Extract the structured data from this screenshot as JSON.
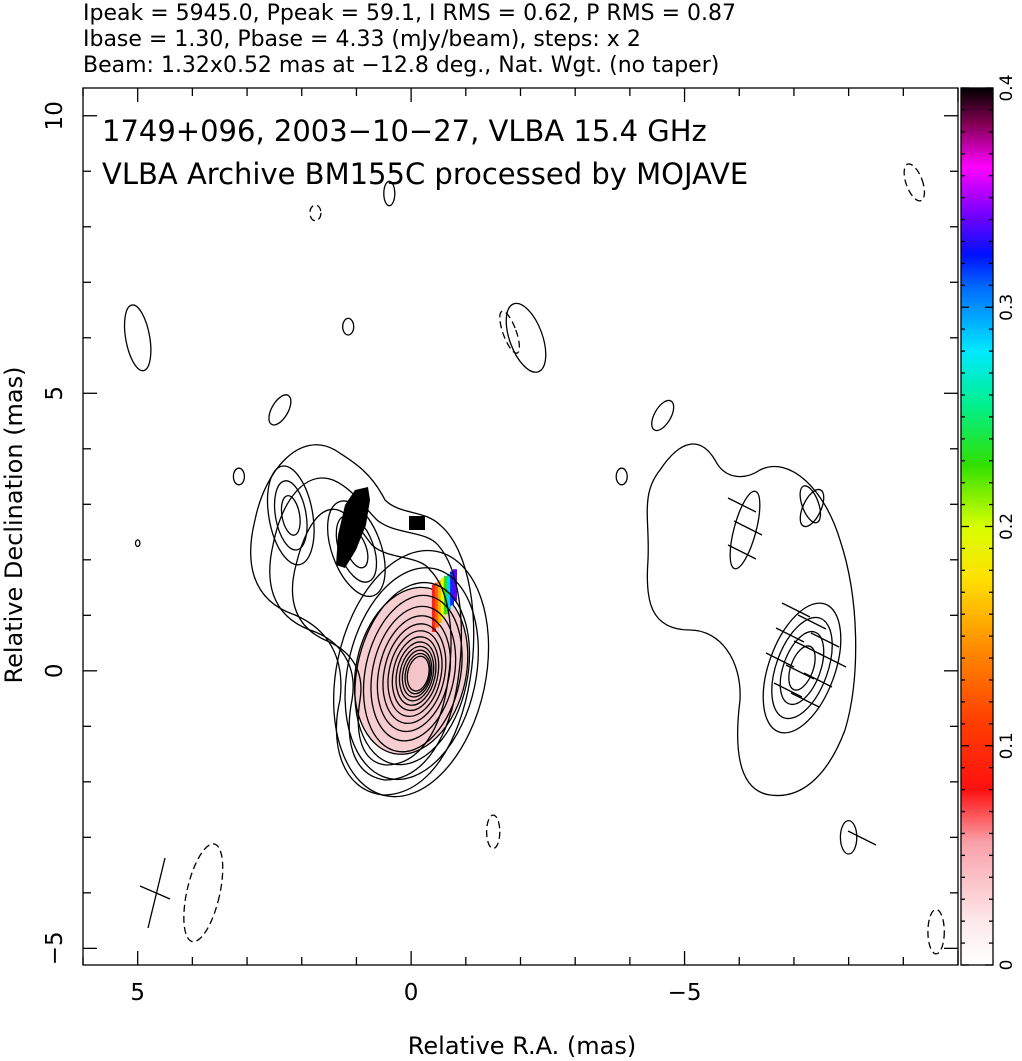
{
  "header": {
    "line1": "Ipeak = 5945.0, Ppeak = 59.1, I RMS = 0.62, P RMS = 0.87",
    "line2": "Ibase = 1.30, Pbase = 4.33 (mJy/beam), steps: x 2",
    "line3": "Beam: 1.32x0.52 mas at −12.8 deg., Nat. Wgt. (no taper)"
  },
  "chart_data": {
    "type": "contour",
    "title": "1749+096, 2003−10−27, VLBA 15.4 GHz",
    "subtitle": "VLBA Archive BM155C processed by MOJAVE",
    "xlabel": "Relative R.A. (mas)",
    "ylabel": "Relative Declination (mas)",
    "xlim": [
      6.0,
      -10.0
    ],
    "ylim": [
      -5.3,
      10.5
    ],
    "x_ticks": [
      {
        "value": 5,
        "label": "5"
      },
      {
        "value": 0,
        "label": "0"
      },
      {
        "value": -5,
        "label": "−5"
      }
    ],
    "y_ticks": [
      {
        "value": 10,
        "label": "10"
      },
      {
        "value": 5,
        "label": "5"
      },
      {
        "value": 0,
        "label": "0"
      },
      {
        "value": -5,
        "label": "−5"
      }
    ],
    "colorbar": {
      "range": [
        0,
        0.4
      ],
      "ticks": [
        {
          "value": 0,
          "label": "0"
        },
        {
          "value": 0.1,
          "label": "0.1"
        },
        {
          "value": 0.2,
          "label": "0.2"
        },
        {
          "value": 0.3,
          "label": "0.3"
        },
        {
          "value": 0.4,
          "label": "0.4"
        }
      ]
    },
    "left_panel": {
      "core": {
        "x": 0,
        "y": 0,
        "sigma_major": 1.45,
        "sigma_minor": 0.65,
        "pa_deg": -12
      },
      "jet": [
        {
          "x": 1.0,
          "y": 2.2,
          "sigma_major": 0.9,
          "sigma_minor": 0.45,
          "pa_deg": 20
        },
        {
          "x": 2.2,
          "y": 2.8,
          "sigma_major": 0.9,
          "sigma_minor": 0.4,
          "pa_deg": 10
        }
      ],
      "islands": [
        {
          "x": 5.0,
          "y": 6.0,
          "a": 0.6,
          "b": 0.22,
          "pa_deg": 10,
          "dashed": false
        },
        {
          "x": 2.4,
          "y": 4.7,
          "a": 0.3,
          "b": 0.15,
          "pa_deg": -30,
          "dashed": false
        },
        {
          "x": 3.15,
          "y": 3.5,
          "a": 0.15,
          "b": 0.1,
          "pa_deg": 0,
          "dashed": false
        },
        {
          "x": 1.15,
          "y": 6.2,
          "a": 0.15,
          "b": 0.1,
          "pa_deg": 0,
          "dashed": false
        },
        {
          "x": 1.75,
          "y": 8.25,
          "a": 0.14,
          "b": 0.1,
          "pa_deg": 0,
          "dashed": true
        },
        {
          "x": 5.0,
          "y": 2.3,
          "a": 0.06,
          "b": 0.04,
          "pa_deg": 0,
          "dashed": false
        },
        {
          "x": 0.4,
          "y": 8.6,
          "a": 0.22,
          "b": 0.1,
          "pa_deg": 0,
          "dashed": false
        },
        {
          "x": -2.1,
          "y": 6.0,
          "a": 0.65,
          "b": 0.3,
          "pa_deg": 20,
          "dashed": false
        },
        {
          "x": -1.8,
          "y": 6.1,
          "a": 0.4,
          "b": 0.12,
          "pa_deg": 20,
          "dashed": true
        },
        {
          "x": -1.5,
          "y": -2.9,
          "a": 0.3,
          "b": 0.12,
          "pa_deg": 0,
          "dashed": true
        }
      ],
      "beam": {
        "x": 3.8,
        "y": -4.0,
        "a": 0.9,
        "b": 0.3,
        "pa_deg": -12.8,
        "dashed": true
      },
      "polarization_blocks": [
        {
          "x": 1.0,
          "y": 2.6
        },
        {
          "x": -0.15,
          "y": 2.7
        }
      ]
    },
    "right_panel": {
      "offset_x": -7.0,
      "description_free": true,
      "islands": [
        {
          "x": -4.6,
          "y": 4.6,
          "a": 0.3,
          "b": 0.15,
          "pa_deg": -30,
          "dashed": false
        },
        {
          "x": -3.85,
          "y": 3.5,
          "a": 0.15,
          "b": 0.1,
          "pa_deg": 0,
          "dashed": false
        },
        {
          "x": -7.3,
          "y": 3.0,
          "a": 0.35,
          "b": 0.15,
          "pa_deg": 20,
          "dashed": false
        },
        {
          "x": -8.0,
          "y": -3.0,
          "a": 0.3,
          "b": 0.15,
          "pa_deg": 0,
          "dashed": false
        },
        {
          "x": -9.2,
          "y": 8.8,
          "a": 0.35,
          "b": 0.15,
          "pa_deg": 20,
          "dashed": true
        },
        {
          "x": -9.6,
          "y": -4.7,
          "a": 0.4,
          "b": 0.15,
          "pa_deg": 0,
          "dashed": true
        }
      ]
    }
  }
}
